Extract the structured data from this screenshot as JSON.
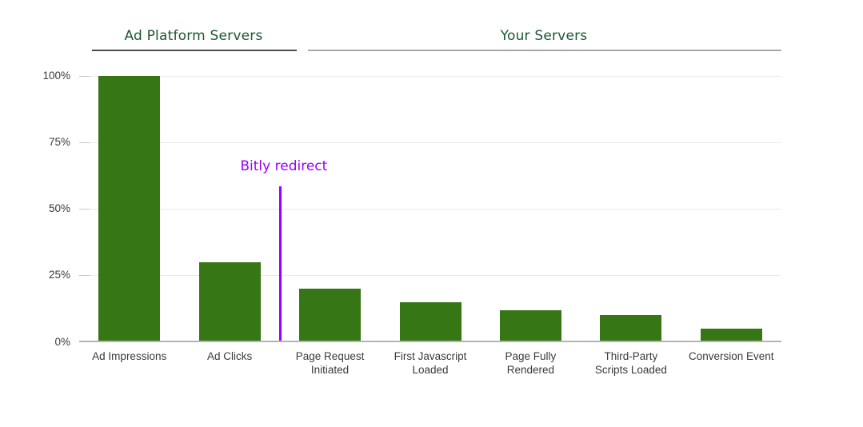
{
  "sections": [
    {
      "label": "Ad Platform Servers"
    },
    {
      "label": "Your Servers"
    }
  ],
  "chart_data": {
    "type": "bar",
    "title": "",
    "xlabel": "",
    "ylabel": "",
    "categories": [
      "Ad Impressions",
      "Ad Clicks",
      "Page Request\nInitiated",
      "First Javascript\nLoaded",
      "Page Fully\nRendered",
      "Third-Party\nScripts Loaded",
      "Conversion Event"
    ],
    "values": [
      100,
      30,
      20,
      15,
      12,
      10,
      5
    ],
    "ylim": [
      0,
      100
    ],
    "yticks": [
      {
        "label": "0%",
        "value": 0
      },
      {
        "label": "25%",
        "value": 25
      },
      {
        "label": "50%",
        "value": 50
      },
      {
        "label": "75%",
        "value": 75
      },
      {
        "label": "100%",
        "value": 100
      }
    ],
    "grid": true,
    "legend": "none",
    "section_groups": [
      {
        "label": "Ad Platform Servers",
        "categories": [
          "Ad Impressions",
          "Ad Clicks"
        ]
      },
      {
        "label": "Your Servers",
        "categories": [
          "Page Request Initiated",
          "First Javascript Loaded",
          "Page Fully Rendered",
          "Third-Party Scripts Loaded",
          "Conversion Event"
        ]
      }
    ],
    "annotation": {
      "label": "Bitly redirect",
      "type": "vertical-line",
      "between": [
        "Ad Clicks",
        "Page Request Initiated"
      ],
      "line_top_value": 58.5
    }
  },
  "colors": {
    "bar": "#377614",
    "section_title": "#1d5632",
    "annotation": "#9900ff",
    "axis_text": "#3a3a3a",
    "gridline": "#eaeaea",
    "tick_stub": "#c8c8c8",
    "baseline": "#b3b3b3",
    "underline_dark": "#4d4d4d",
    "underline_gray": "#a8a8a8"
  }
}
